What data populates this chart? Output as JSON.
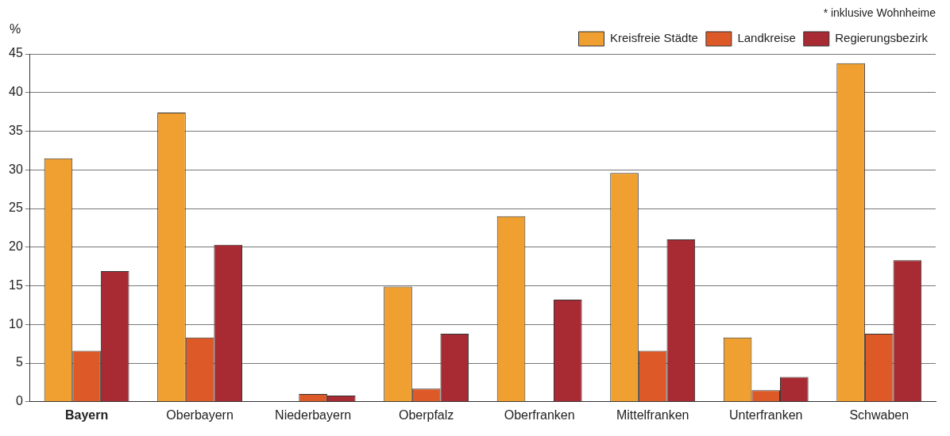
{
  "chart_data": {
    "type": "bar",
    "ylabel": "%",
    "annotations": [
      "* inklusive Wohnheime"
    ],
    "categories": [
      "Bayern",
      "Oberbayern",
      "Niederbayern",
      "Oberpfalz",
      "Oberfranken",
      "Mittelfranken",
      "Unterfranken",
      "Schwaben"
    ],
    "series": [
      {
        "name": "Kreisfreie Städte",
        "color": "#f0a030",
        "values": [
          31.5,
          37.4,
          null,
          14.9,
          24.0,
          29.6,
          8.3,
          43.8
        ]
      },
      {
        "name": "Landkreise",
        "color": "#dd5a28",
        "values": [
          6.6,
          8.3,
          1.0,
          1.7,
          null,
          6.6,
          1.5,
          8.8
        ]
      },
      {
        "name": "Regierungsbezirk",
        "color": "#a82a33",
        "values": [
          16.9,
          20.3,
          0.8,
          8.8,
          13.2,
          21.0,
          3.2,
          18.3
        ]
      }
    ],
    "ylim": [
      0,
      45
    ],
    "yticks": [
      0,
      5,
      10,
      15,
      20,
      25,
      30,
      35,
      40,
      45
    ],
    "grid": "y",
    "legend": "top right"
  }
}
